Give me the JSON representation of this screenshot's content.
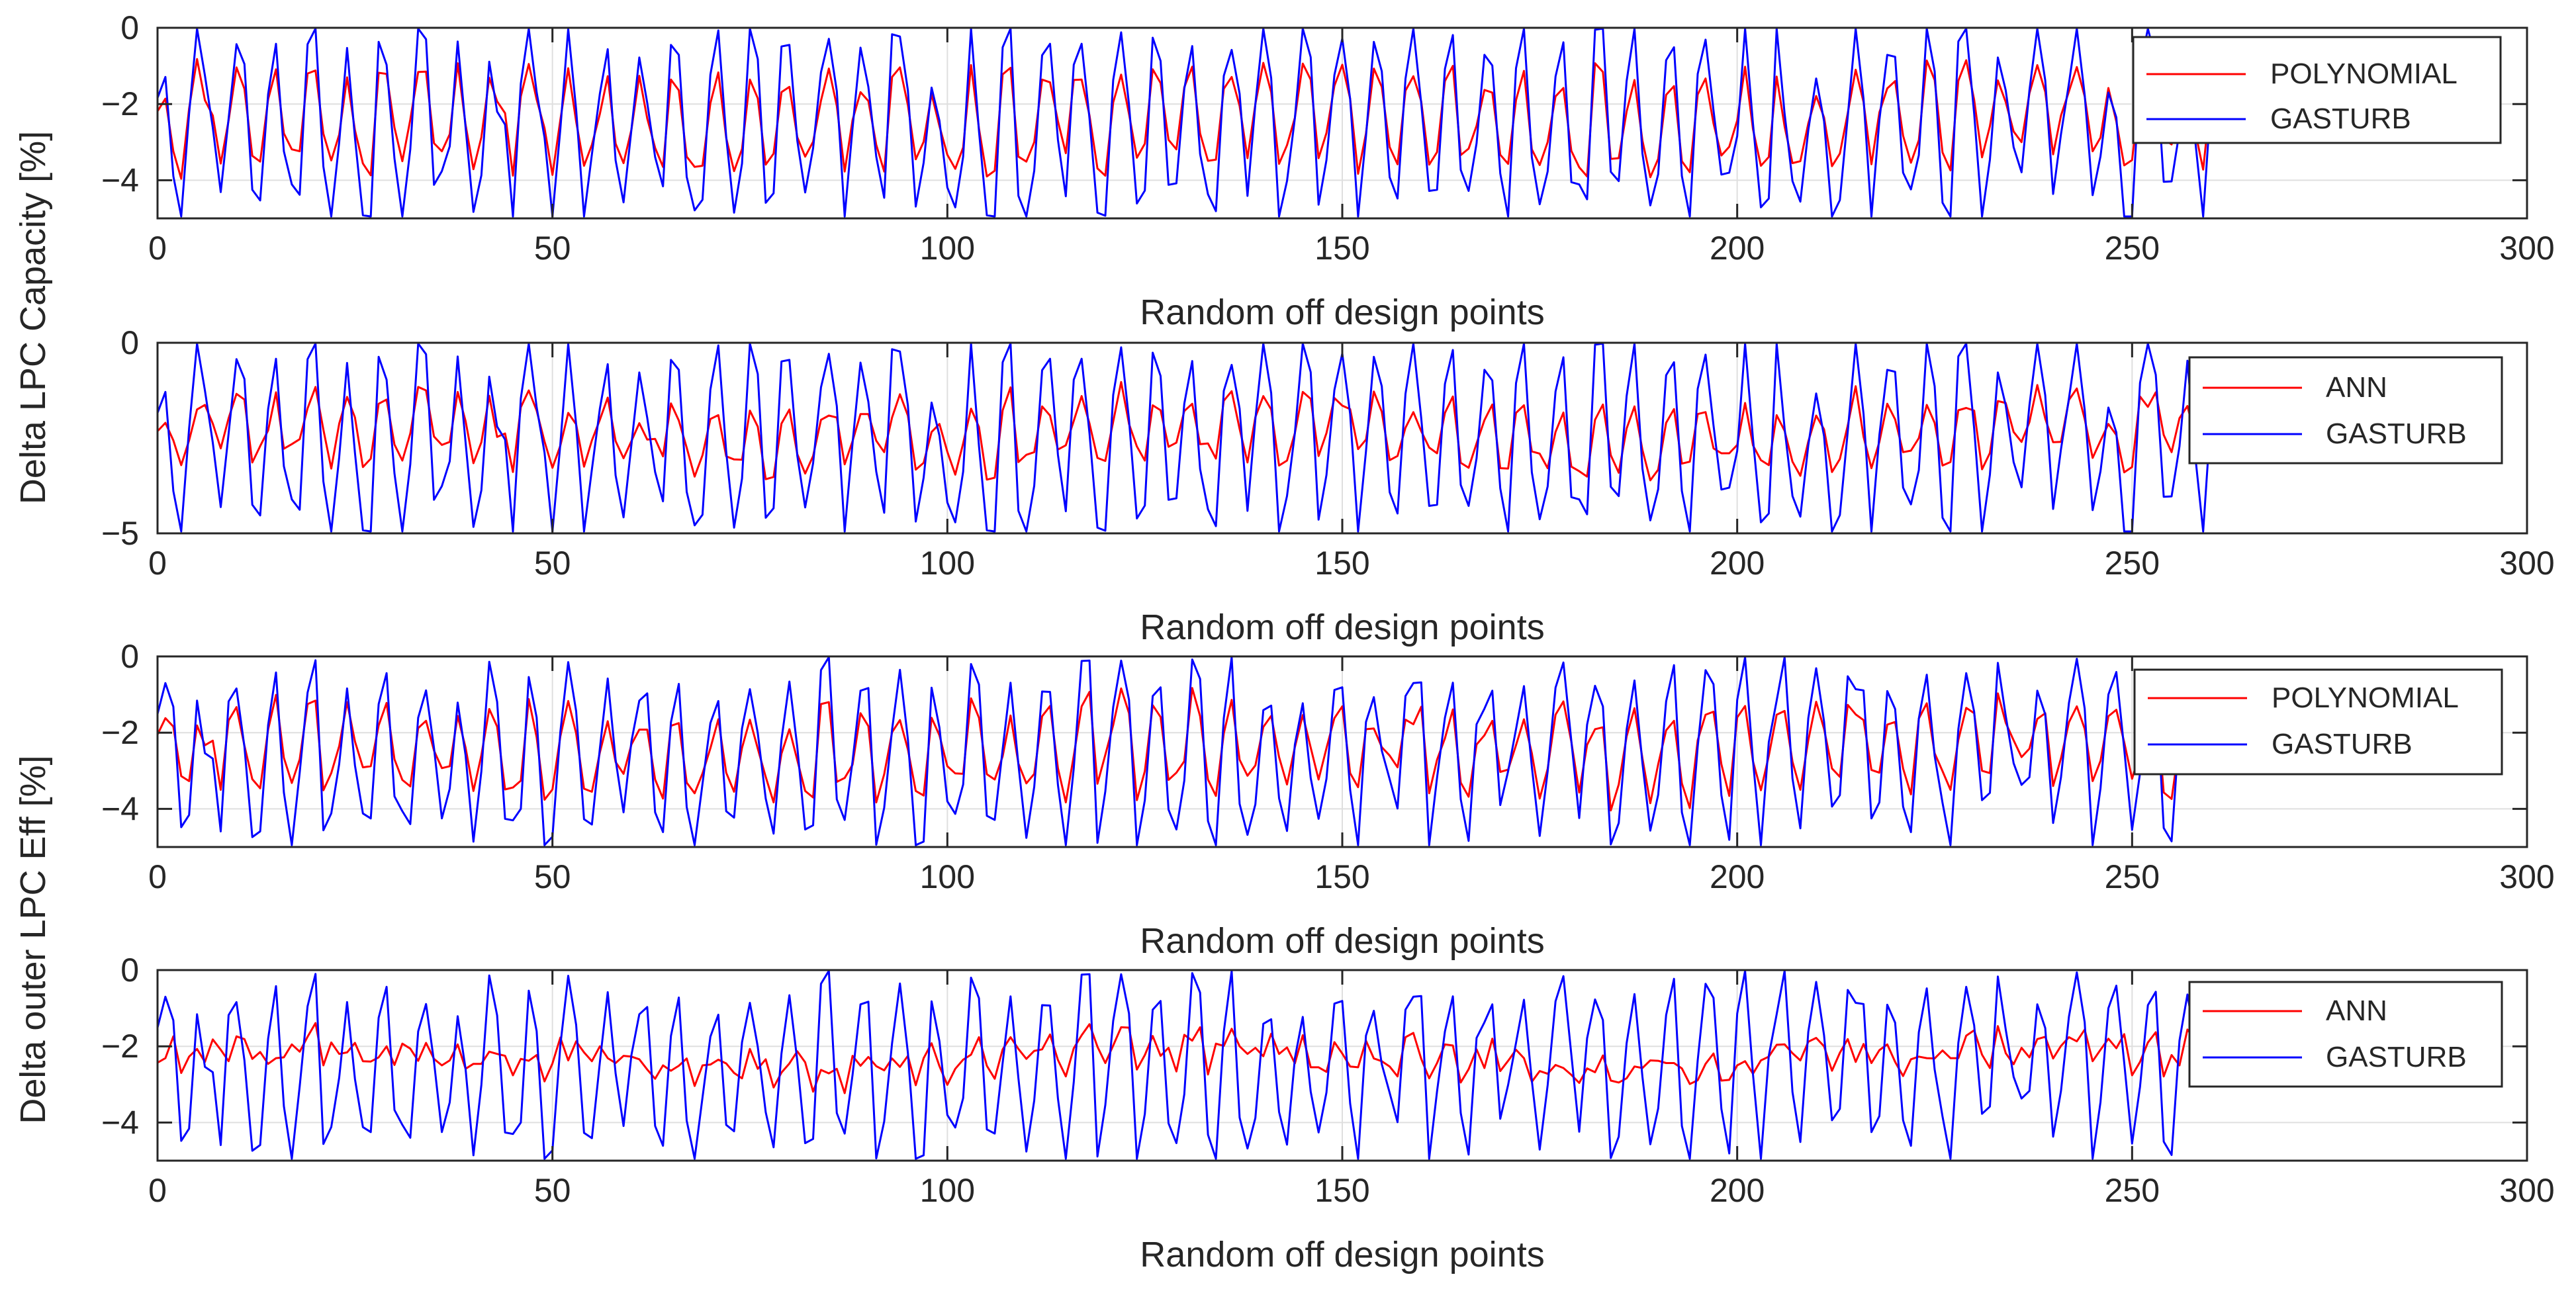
{
  "figure": {
    "background": "#ffffff"
  },
  "chart_data": [
    {
      "type": "line",
      "xlabel": "Random off design points",
      "ylabel": "Delta LPC Capacity   [%]",
      "xlim": [
        0,
        300
      ],
      "ylim": [
        -5,
        0
      ],
      "xticks": [
        "0",
        "50",
        "100",
        "150",
        "200",
        "250",
        "300"
      ],
      "yticks": [
        "0",
        "-2",
        "-4"
      ],
      "grid": true,
      "legend": {
        "placement": "top-right",
        "entries": [
          "POLYNOMIAL",
          "GASTURB"
        ]
      },
      "series": [
        {
          "name": "POLYNOMIAL",
          "color": "#ff0000",
          "seed": 11,
          "smooth": 0.55,
          "x_end": 262
        },
        {
          "name": "GASTURB",
          "color": "#0000ff",
          "seed": 101,
          "x_end": 262
        }
      ]
    },
    {
      "type": "line",
      "xlabel": "Random off design points",
      "ylabel": "Delta LPC Capacity   [%]",
      "xlim": [
        0,
        300
      ],
      "ylim": [
        -5,
        0
      ],
      "xticks": [
        "0",
        "50",
        "100",
        "150",
        "200",
        "250",
        "300"
      ],
      "yticks": [
        "0",
        "-5"
      ],
      "grid": true,
      "legend": {
        "placement": "top-right",
        "entries": [
          "ANN",
          "GASTURB"
        ]
      },
      "series": [
        {
          "name": "ANN",
          "color": "#ff0000",
          "seed": 22,
          "smooth": 0.35,
          "x_end": 262
        },
        {
          "name": "GASTURB",
          "color": "#0000ff",
          "seed": 101,
          "x_end": 262
        }
      ]
    },
    {
      "type": "line",
      "xlabel": "Random off design points",
      "ylabel": "Delta outer LPC Eff [%]",
      "xlim": [
        0,
        300
      ],
      "ylim": [
        -5,
        0
      ],
      "xticks": [
        "0",
        "50",
        "100",
        "150",
        "200",
        "250",
        "300"
      ],
      "yticks": [
        "0",
        "-2",
        "-4"
      ],
      "grid": true,
      "legend": {
        "placement": "top-right",
        "entries": [
          "POLYNOMIAL",
          "GASTURB"
        ]
      },
      "series": [
        {
          "name": "POLYNOMIAL",
          "color": "#ff0000",
          "seed": 33,
          "smooth": 0.5,
          "x_end": 258
        },
        {
          "name": "GASTURB",
          "color": "#0000ff",
          "seed": 202,
          "x_end": 258
        }
      ]
    },
    {
      "type": "line",
      "xlabel": "Random off design points",
      "ylabel": "Delta outer LPC Eff [%]",
      "xlim": [
        0,
        300
      ],
      "ylim": [
        -5,
        0
      ],
      "xticks": [
        "0",
        "50",
        "100",
        "150",
        "200",
        "250",
        "300"
      ],
      "yticks": [
        "0",
        "-2",
        "-4"
      ],
      "grid": true,
      "legend": {
        "placement": "top-right",
        "entries": [
          "ANN",
          "GASTURB"
        ]
      },
      "series": [
        {
          "name": "ANN",
          "color": "#ff0000",
          "seed": 44,
          "smooth": 0.12,
          "x_end": 258
        },
        {
          "name": "GASTURB",
          "color": "#0000ff",
          "seed": 202,
          "x_end": 258
        }
      ]
    }
  ],
  "shared_ylabels": [
    "Delta LPC Capacity   [%]",
    "Delta outer LPC Eff [%]"
  ]
}
